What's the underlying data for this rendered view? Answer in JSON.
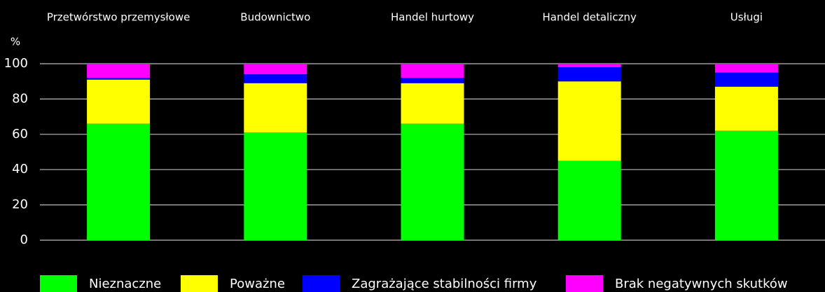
{
  "chart_data": {
    "type": "stacked_bar",
    "y_label": "%",
    "categories": [
      "Przetwórstwo przemysłowe",
      "Budownictwo",
      "Handel hurtowy",
      "Handel detaliczny",
      "Usługi"
    ],
    "series": [
      {
        "name": "Nieznaczne",
        "color": "#00ff00",
        "values": [
          66,
          61,
          66,
          45,
          62
        ]
      },
      {
        "name": "Poważne",
        "color": "#ffff00",
        "values": [
          25,
          28,
          23,
          45,
          25
        ]
      },
      {
        "name": "Zagrażające stabilności firmy",
        "color": "#0000ff",
        "values": [
          1,
          5,
          3,
          8,
          8
        ]
      },
      {
        "name": "Brak negatywnych skutków",
        "color": "#ff00ff",
        "values": [
          8,
          6,
          8,
          2,
          5
        ]
      }
    ],
    "ylim": [
      0,
      100
    ],
    "yticks": [
      0,
      20,
      40,
      60,
      80,
      100
    ],
    "grid": true,
    "legend": "bottom"
  }
}
